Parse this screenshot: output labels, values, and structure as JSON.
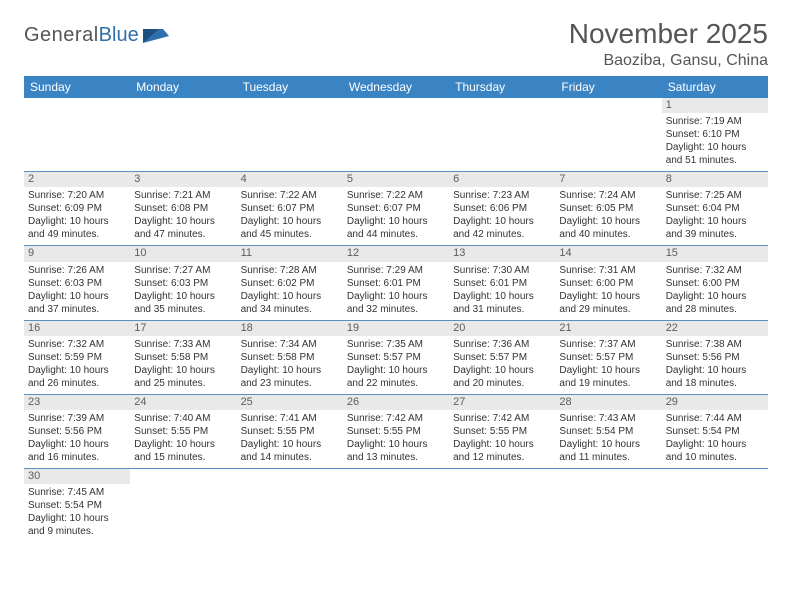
{
  "logo": {
    "general": "General",
    "blue": "Blue"
  },
  "title": "November 2025",
  "location": "Baoziba, Gansu, China",
  "colors": {
    "header_bg": "#3b84c4",
    "header_text": "#ffffff",
    "daynum_bg": "#e9e9e9",
    "daynum_text": "#5d5d5d",
    "cell_border": "#5a8fc0",
    "body_text": "#333333",
    "title_text": "#555555"
  },
  "weekdays": [
    "Sunday",
    "Monday",
    "Tuesday",
    "Wednesday",
    "Thursday",
    "Friday",
    "Saturday"
  ],
  "weeks": [
    [
      null,
      null,
      null,
      null,
      null,
      null,
      {
        "n": "1",
        "sr": "Sunrise: 7:19 AM",
        "ss": "Sunset: 6:10 PM",
        "dl": "Daylight: 10 hours and 51 minutes."
      }
    ],
    [
      {
        "n": "2",
        "sr": "Sunrise: 7:20 AM",
        "ss": "Sunset: 6:09 PM",
        "dl": "Daylight: 10 hours and 49 minutes."
      },
      {
        "n": "3",
        "sr": "Sunrise: 7:21 AM",
        "ss": "Sunset: 6:08 PM",
        "dl": "Daylight: 10 hours and 47 minutes."
      },
      {
        "n": "4",
        "sr": "Sunrise: 7:22 AM",
        "ss": "Sunset: 6:07 PM",
        "dl": "Daylight: 10 hours and 45 minutes."
      },
      {
        "n": "5",
        "sr": "Sunrise: 7:22 AM",
        "ss": "Sunset: 6:07 PM",
        "dl": "Daylight: 10 hours and 44 minutes."
      },
      {
        "n": "6",
        "sr": "Sunrise: 7:23 AM",
        "ss": "Sunset: 6:06 PM",
        "dl": "Daylight: 10 hours and 42 minutes."
      },
      {
        "n": "7",
        "sr": "Sunrise: 7:24 AM",
        "ss": "Sunset: 6:05 PM",
        "dl": "Daylight: 10 hours and 40 minutes."
      },
      {
        "n": "8",
        "sr": "Sunrise: 7:25 AM",
        "ss": "Sunset: 6:04 PM",
        "dl": "Daylight: 10 hours and 39 minutes."
      }
    ],
    [
      {
        "n": "9",
        "sr": "Sunrise: 7:26 AM",
        "ss": "Sunset: 6:03 PM",
        "dl": "Daylight: 10 hours and 37 minutes."
      },
      {
        "n": "10",
        "sr": "Sunrise: 7:27 AM",
        "ss": "Sunset: 6:03 PM",
        "dl": "Daylight: 10 hours and 35 minutes."
      },
      {
        "n": "11",
        "sr": "Sunrise: 7:28 AM",
        "ss": "Sunset: 6:02 PM",
        "dl": "Daylight: 10 hours and 34 minutes."
      },
      {
        "n": "12",
        "sr": "Sunrise: 7:29 AM",
        "ss": "Sunset: 6:01 PM",
        "dl": "Daylight: 10 hours and 32 minutes."
      },
      {
        "n": "13",
        "sr": "Sunrise: 7:30 AM",
        "ss": "Sunset: 6:01 PM",
        "dl": "Daylight: 10 hours and 31 minutes."
      },
      {
        "n": "14",
        "sr": "Sunrise: 7:31 AM",
        "ss": "Sunset: 6:00 PM",
        "dl": "Daylight: 10 hours and 29 minutes."
      },
      {
        "n": "15",
        "sr": "Sunrise: 7:32 AM",
        "ss": "Sunset: 6:00 PM",
        "dl": "Daylight: 10 hours and 28 minutes."
      }
    ],
    [
      {
        "n": "16",
        "sr": "Sunrise: 7:32 AM",
        "ss": "Sunset: 5:59 PM",
        "dl": "Daylight: 10 hours and 26 minutes."
      },
      {
        "n": "17",
        "sr": "Sunrise: 7:33 AM",
        "ss": "Sunset: 5:58 PM",
        "dl": "Daylight: 10 hours and 25 minutes."
      },
      {
        "n": "18",
        "sr": "Sunrise: 7:34 AM",
        "ss": "Sunset: 5:58 PM",
        "dl": "Daylight: 10 hours and 23 minutes."
      },
      {
        "n": "19",
        "sr": "Sunrise: 7:35 AM",
        "ss": "Sunset: 5:57 PM",
        "dl": "Daylight: 10 hours and 22 minutes."
      },
      {
        "n": "20",
        "sr": "Sunrise: 7:36 AM",
        "ss": "Sunset: 5:57 PM",
        "dl": "Daylight: 10 hours and 20 minutes."
      },
      {
        "n": "21",
        "sr": "Sunrise: 7:37 AM",
        "ss": "Sunset: 5:57 PM",
        "dl": "Daylight: 10 hours and 19 minutes."
      },
      {
        "n": "22",
        "sr": "Sunrise: 7:38 AM",
        "ss": "Sunset: 5:56 PM",
        "dl": "Daylight: 10 hours and 18 minutes."
      }
    ],
    [
      {
        "n": "23",
        "sr": "Sunrise: 7:39 AM",
        "ss": "Sunset: 5:56 PM",
        "dl": "Daylight: 10 hours and 16 minutes."
      },
      {
        "n": "24",
        "sr": "Sunrise: 7:40 AM",
        "ss": "Sunset: 5:55 PM",
        "dl": "Daylight: 10 hours and 15 minutes."
      },
      {
        "n": "25",
        "sr": "Sunrise: 7:41 AM",
        "ss": "Sunset: 5:55 PM",
        "dl": "Daylight: 10 hours and 14 minutes."
      },
      {
        "n": "26",
        "sr": "Sunrise: 7:42 AM",
        "ss": "Sunset: 5:55 PM",
        "dl": "Daylight: 10 hours and 13 minutes."
      },
      {
        "n": "27",
        "sr": "Sunrise: 7:42 AM",
        "ss": "Sunset: 5:55 PM",
        "dl": "Daylight: 10 hours and 12 minutes."
      },
      {
        "n": "28",
        "sr": "Sunrise: 7:43 AM",
        "ss": "Sunset: 5:54 PM",
        "dl": "Daylight: 10 hours and 11 minutes."
      },
      {
        "n": "29",
        "sr": "Sunrise: 7:44 AM",
        "ss": "Sunset: 5:54 PM",
        "dl": "Daylight: 10 hours and 10 minutes."
      }
    ],
    [
      {
        "n": "30",
        "sr": "Sunrise: 7:45 AM",
        "ss": "Sunset: 5:54 PM",
        "dl": "Daylight: 10 hours and 9 minutes."
      },
      null,
      null,
      null,
      null,
      null,
      null
    ]
  ]
}
